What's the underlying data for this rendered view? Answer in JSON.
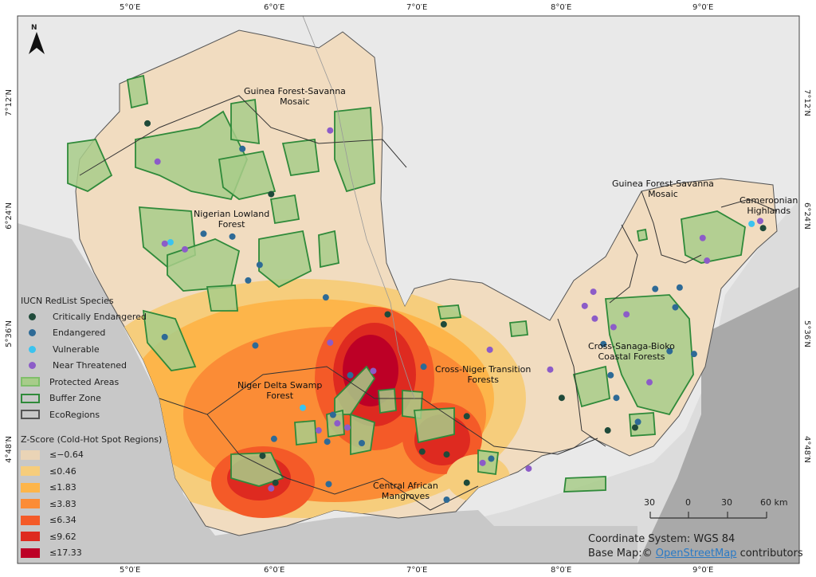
{
  "graticule": {
    "lon_labels": [
      "5°0′E",
      "6°0′E",
      "7°0′E",
      "8°0′E",
      "9°0′E"
    ],
    "lat_labels": [
      "7°12′N",
      "6°24′N",
      "5°36′N",
      "4°48′N"
    ]
  },
  "north_arrow": {
    "label": "N"
  },
  "ecoregions": [
    {
      "name": "Guinea Forest-Savanna\nMosaic"
    },
    {
      "name": "Nigerian Lowland\nForest"
    },
    {
      "name": "Guinea Forest-Savanna\nMosaic"
    },
    {
      "name": "Cameroonian\nHighlands"
    },
    {
      "name": "Cross-Sanaga-Bioko\nCoastal Forests"
    },
    {
      "name": "Cross-Niger Transition\nForests"
    },
    {
      "name": "Niger Delta Swamp\nForest"
    },
    {
      "name": "Central African\nMangroves"
    }
  ],
  "legend": {
    "species_title": "IUCN RedList Species",
    "species": [
      {
        "label": "Critically Endangered",
        "color": "#1f4a3a"
      },
      {
        "label": "Endangered",
        "color": "#2e6a96"
      },
      {
        "label": "Vulnerable",
        "color": "#3bc3ef"
      },
      {
        "label": "Near Threatened",
        "color": "#8c5cc8"
      }
    ],
    "layers": [
      {
        "label": "Protected Areas",
        "fill": "#a8cc8a",
        "stroke": "#7fbf6a"
      },
      {
        "label": "Buffer Zone",
        "fill": "none",
        "stroke": "#2f8a3a"
      },
      {
        "label": "EcoRegions",
        "fill": "none",
        "stroke": "#555555"
      }
    ],
    "zscore_title": "Z-Score (Cold-Hot Spot Regions)",
    "zscore": [
      {
        "label": "≤−0.64",
        "color": "#ead4b6"
      },
      {
        "label": "≤0.46",
        "color": "#f6cd7c"
      },
      {
        "label": "≤1.83",
        "color": "#fdb54a"
      },
      {
        "label": "≤3.83",
        "color": "#fb8c36"
      },
      {
        "label": "≤6.34",
        "color": "#f45a28"
      },
      {
        "label": "≤9.62",
        "color": "#de2a20"
      },
      {
        "label": "≤17.33",
        "color": "#bd0026"
      }
    ]
  },
  "scalebar": {
    "ticks": [
      "30",
      "0",
      "30",
      "60 km"
    ]
  },
  "credits": {
    "crs": "Coordinate System: WGS 84",
    "basemap_prefix": "Base Map:©",
    "basemap_link": "OpenStreetMap",
    "basemap_suffix": "contributors"
  },
  "species_points": [
    {
      "status": "Critically Endangered",
      "points": [
        [
          5.1,
          7.06
        ],
        [
          5.96,
          6.56
        ],
        [
          6.77,
          5.71
        ],
        [
          7.16,
          5.64
        ],
        [
          7.98,
          5.12
        ],
        [
          8.3,
          4.89
        ],
        [
          8.49,
          4.91
        ],
        [
          5.9,
          4.71
        ],
        [
          7.01,
          4.74
        ],
        [
          7.18,
          4.72
        ],
        [
          7.32,
          4.99
        ],
        [
          9.38,
          6.32
        ],
        [
          7.32,
          4.52
        ],
        [
          5.99,
          4.52
        ]
      ]
    },
    {
      "status": "Endangered",
      "points": [
        [
          5.76,
          6.88
        ],
        [
          5.49,
          6.28
        ],
        [
          5.69,
          6.26
        ],
        [
          5.88,
          6.06
        ],
        [
          5.8,
          5.95
        ],
        [
          6.34,
          5.83
        ],
        [
          5.22,
          5.55
        ],
        [
          5.85,
          5.49
        ],
        [
          5.98,
          4.83
        ],
        [
          6.35,
          4.81
        ],
        [
          6.36,
          4.51
        ],
        [
          6.51,
          5.28
        ],
        [
          6.39,
          5.0
        ],
        [
          8.63,
          5.89
        ],
        [
          8.8,
          5.9
        ],
        [
          8.77,
          5.76
        ],
        [
          8.27,
          5.5
        ],
        [
          8.32,
          5.28
        ],
        [
          8.36,
          5.12
        ],
        [
          8.73,
          5.45
        ],
        [
          8.9,
          5.43
        ],
        [
          8.51,
          4.95
        ],
        [
          7.02,
          5.34
        ],
        [
          7.18,
          4.4
        ],
        [
          7.49,
          4.69
        ],
        [
          6.59,
          4.8
        ]
      ]
    },
    {
      "status": "Vulnerable",
      "points": [
        [
          5.26,
          6.22
        ],
        [
          6.18,
          5.05
        ],
        [
          9.3,
          6.35
        ]
      ]
    },
    {
      "status": "Near Threatened",
      "points": [
        [
          5.17,
          6.79
        ],
        [
          5.22,
          6.21
        ],
        [
          5.36,
          6.17
        ],
        [
          6.37,
          7.01
        ],
        [
          6.37,
          5.51
        ],
        [
          6.67,
          5.31
        ],
        [
          7.48,
          5.46
        ],
        [
          7.9,
          5.32
        ],
        [
          8.2,
          5.87
        ],
        [
          8.14,
          5.77
        ],
        [
          8.21,
          5.68
        ],
        [
          8.34,
          5.62
        ],
        [
          8.43,
          5.71
        ],
        [
          8.59,
          5.23
        ],
        [
          8.96,
          6.25
        ],
        [
          8.99,
          6.09
        ],
        [
          9.36,
          6.37
        ],
        [
          6.42,
          4.94
        ],
        [
          6.49,
          4.91
        ],
        [
          6.29,
          4.89
        ],
        [
          7.75,
          4.62
        ],
        [
          7.43,
          4.66
        ],
        [
          5.96,
          4.48
        ]
      ]
    }
  ]
}
